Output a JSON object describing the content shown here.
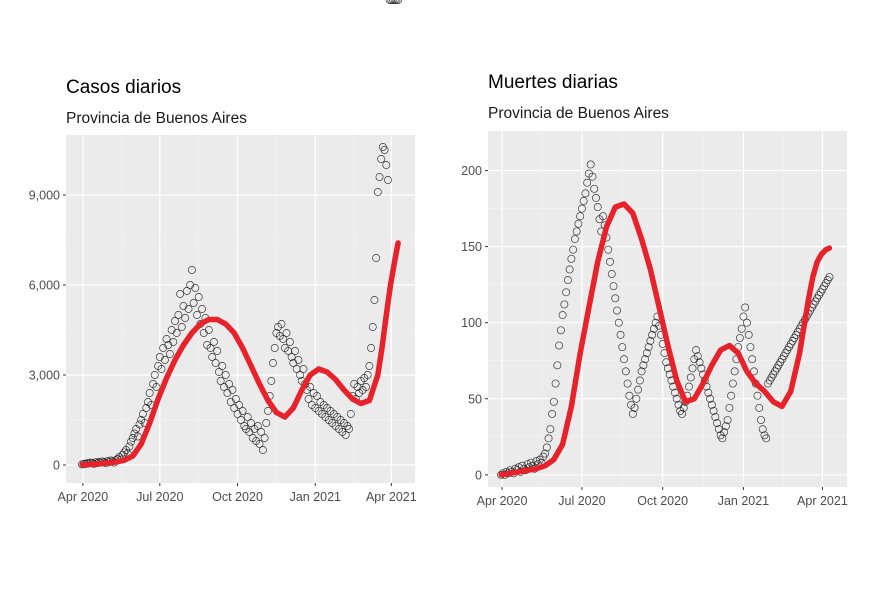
{
  "chart_data": [
    {
      "type": "scatter",
      "title": "Casos diarios",
      "subtitle": "Provincia de Buenos Aires",
      "xlabel": "",
      "ylabel": "",
      "x_ticks": [
        "Apr 2020",
        "Jul 2020",
        "Oct 2020",
        "Jan 2021",
        "Apr 2021"
      ],
      "y_ticks": [
        "0",
        "3,000",
        "6,000",
        "9,000"
      ],
      "y_tick_values": [
        0,
        3000,
        6000,
        9000
      ],
      "ylim": [
        -600,
        11000
      ],
      "xlim_days": [
        -19,
        394
      ],
      "x_tick_days": [
        1,
        92,
        184,
        276,
        366
      ],
      "grid": true,
      "smooth_color": "#e8222a",
      "points_color": "#1a1a1a",
      "panel_bg": "#ebebeb",
      "points_x": [
        0,
        2,
        4,
        6,
        8,
        10,
        12,
        14,
        16,
        18,
        20,
        22,
        24,
        26,
        28,
        30,
        32,
        34,
        36,
        38,
        40,
        42,
        44,
        46,
        48,
        50,
        52,
        54,
        56,
        58,
        60,
        62,
        64,
        66,
        68,
        70,
        72,
        74,
        76,
        78,
        80,
        82,
        84,
        86,
        88,
        90,
        92,
        94,
        96,
        98,
        100,
        102,
        104,
        106,
        108,
        110,
        112,
        114,
        116,
        118,
        120,
        122,
        124,
        126,
        128,
        130,
        132,
        134,
        136,
        138,
        140,
        142,
        144,
        146,
        148,
        150,
        152,
        154,
        156,
        158,
        160,
        162,
        164,
        166,
        168,
        170,
        172,
        174,
        176,
        178,
        180,
        182,
        184,
        186,
        188,
        190,
        192,
        194,
        196,
        198,
        200,
        202,
        204,
        206,
        208,
        210,
        212,
        214,
        216,
        218,
        220,
        222,
        224,
        226,
        228,
        230,
        232,
        234,
        236,
        238,
        240,
        242,
        244,
        246,
        248,
        250,
        252,
        254,
        256,
        258,
        260,
        262,
        264,
        266,
        268,
        270,
        272,
        274,
        276,
        278,
        280,
        282,
        284,
        286,
        288,
        290,
        292,
        294,
        296,
        298,
        300,
        302,
        304,
        306,
        308,
        310,
        312,
        314,
        316,
        318,
        320,
        322,
        324,
        326,
        328,
        330,
        332,
        334,
        336,
        338,
        340,
        342,
        344,
        346,
        348,
        350,
        352,
        354,
        356,
        358,
        360,
        362,
        364,
        366,
        368,
        370,
        372,
        374
      ],
      "points_y": [
        20,
        40,
        30,
        60,
        50,
        80,
        70,
        40,
        90,
        60,
        100,
        80,
        120,
        90,
        60,
        130,
        100,
        150,
        120,
        80,
        160,
        200,
        260,
        180,
        340,
        420,
        500,
        380,
        620,
        780,
        900,
        1050,
        1200,
        950,
        1350,
        1500,
        1700,
        1400,
        1900,
        2100,
        2400,
        2000,
        2700,
        3000,
        2600,
        3300,
        3600,
        3200,
        3900,
        3500,
        4200,
        4000,
        3700,
        4500,
        4100,
        4800,
        4400,
        5000,
        5700,
        4600,
        5300,
        4900,
        5800,
        5200,
        6000,
        6500,
        5400,
        5900,
        5000,
        5600,
        4700,
        5200,
        4400,
        4900,
        4000,
        4500,
        3900,
        3600,
        4100,
        3400,
        3800,
        3100,
        2800,
        3300,
        2600,
        3000,
        2400,
        2700,
        2100,
        2500,
        1900,
        2200,
        1700,
        2000,
        1500,
        1800,
        1300,
        1200,
        1600,
        1100,
        1400,
        900,
        1200,
        800,
        1300,
        700,
        1100,
        500,
        900,
        1400,
        1800,
        2300,
        2800,
        3400,
        3900,
        4400,
        4600,
        4300,
        4700,
        4200,
        3900,
        4400,
        3800,
        4100,
        3600,
        3400,
        3800,
        3200,
        3500,
        3000,
        2800,
        3200,
        2700,
        2500,
        2200,
        2600,
        2000,
        2400,
        1900,
        2300,
        1800,
        2100,
        1700,
        2000,
        1600,
        1900,
        1500,
        1800,
        1400,
        1700,
        1300,
        1600,
        1200,
        1500,
        1100,
        1400,
        1000,
        1300,
        1200,
        1700,
        2300,
        2700,
        2200,
        2600,
        2400,
        2800,
        2500,
        2900,
        2600,
        3000,
        3300,
        3900,
        4600,
        5500,
        6900,
        9100,
        9600,
        10200,
        10600,
        10500,
        10000,
        9500
      ],
      "smooth_x": [
        0,
        10,
        20,
        30,
        40,
        50,
        60,
        70,
        80,
        90,
        100,
        110,
        120,
        130,
        140,
        150,
        160,
        170,
        180,
        190,
        200,
        210,
        220,
        230,
        240,
        250,
        260,
        270,
        280,
        290,
        300,
        310,
        320,
        330,
        340,
        350,
        355,
        360,
        365,
        370,
        374
      ],
      "smooth_y": [
        10,
        20,
        40,
        70,
        100,
        160,
        300,
        700,
        1400,
        2200,
        2900,
        3500,
        4000,
        4400,
        4700,
        4850,
        4850,
        4700,
        4400,
        3900,
        3300,
        2700,
        2150,
        1750,
        1600,
        1900,
        2500,
        3000,
        3200,
        3100,
        2850,
        2500,
        2200,
        2050,
        2150,
        3000,
        3900,
        5000,
        6000,
        6800,
        7400
      ]
    },
    {
      "type": "scatter",
      "title": "Muertes diarias",
      "subtitle": "Provincia de Buenos Aires",
      "xlabel": "",
      "ylabel": "",
      "x_ticks": [
        "Apr 2020",
        "Jul 2020",
        "Oct 2020",
        "Jan 2021",
        "Apr 2021"
      ],
      "y_ticks": [
        "0",
        "50",
        "100",
        "150",
        "200"
      ],
      "y_tick_values": [
        0,
        50,
        100,
        150,
        200
      ],
      "ylim": [
        -8,
        226
      ],
      "xlim_days": [
        -15,
        394
      ],
      "x_tick_days": [
        1,
        92,
        184,
        276,
        366
      ],
      "grid": true,
      "smooth_color": "#e8222a",
      "points_color": "#1a1a1a",
      "panel_bg": "#ebebeb",
      "points_x": [
        0,
        2,
        4,
        6,
        8,
        10,
        12,
        14,
        16,
        18,
        20,
        22,
        24,
        26,
        28,
        30,
        32,
        34,
        36,
        38,
        40,
        42,
        44,
        46,
        48,
        50,
        52,
        54,
        56,
        58,
        60,
        62,
        64,
        66,
        68,
        70,
        72,
        74,
        76,
        78,
        80,
        82,
        84,
        86,
        88,
        90,
        92,
        94,
        96,
        98,
        100,
        102,
        104,
        106,
        108,
        110,
        112,
        114,
        116,
        118,
        120,
        122,
        124,
        126,
        128,
        130,
        132,
        134,
        136,
        138,
        140,
        142,
        144,
        146,
        148,
        150,
        152,
        154,
        156,
        158,
        160,
        162,
        164,
        166,
        168,
        170,
        172,
        174,
        176,
        178,
        180,
        182,
        184,
        186,
        188,
        190,
        192,
        194,
        196,
        198,
        200,
        202,
        204,
        206,
        208,
        210,
        212,
        214,
        216,
        218,
        220,
        222,
        224,
        226,
        228,
        230,
        232,
        234,
        236,
        238,
        240,
        242,
        244,
        246,
        248,
        250,
        252,
        254,
        256,
        258,
        260,
        262,
        264,
        266,
        268,
        270,
        272,
        274,
        276,
        278,
        280,
        282,
        284,
        286,
        288,
        290,
        292,
        294,
        296,
        298,
        300,
        302,
        304,
        306,
        308,
        310,
        312,
        314,
        316,
        318,
        320,
        322,
        324,
        326,
        328,
        330,
        332,
        334,
        336,
        338,
        340,
        342,
        344,
        346,
        348,
        350,
        352,
        354,
        356,
        358,
        360,
        362,
        364,
        366,
        368,
        370,
        372,
        374
      ],
      "points_y": [
        0,
        1,
        0,
        2,
        1,
        3,
        2,
        1,
        4,
        3,
        5,
        2,
        6,
        4,
        3,
        7,
        5,
        8,
        6,
        4,
        9,
        7,
        10,
        8,
        12,
        14,
        18,
        24,
        30,
        40,
        48,
        60,
        72,
        85,
        95,
        105,
        112,
        120,
        128,
        135,
        142,
        148,
        155,
        160,
        165,
        170,
        175,
        180,
        185,
        192,
        198,
        204,
        196,
        188,
        182,
        176,
        168,
        160,
        170,
        164,
        156,
        148,
        140,
        132,
        124,
        116,
        108,
        100,
        92,
        84,
        76,
        68,
        60,
        52,
        46,
        40,
        44,
        50,
        56,
        62,
        68,
        72,
        76,
        80,
        84,
        88,
        92,
        96,
        100,
        104,
        98,
        92,
        86,
        80,
        74,
        70,
        66,
        62,
        58,
        54,
        50,
        46,
        42,
        40,
        44,
        48,
        52,
        58,
        64,
        70,
        76,
        82,
        78,
        74,
        70,
        66,
        62,
        58,
        54,
        50,
        46,
        42,
        38,
        34,
        30,
        26,
        24,
        28,
        32,
        36,
        44,
        52,
        60,
        68,
        76,
        84,
        90,
        96,
        104,
        110,
        100,
        92,
        84,
        76,
        68,
        60,
        52,
        44,
        36,
        30,
        26,
        24,
        60,
        62,
        64,
        66,
        68,
        70,
        72,
        74,
        76,
        78,
        80,
        82,
        84,
        86,
        88,
        90,
        92,
        94,
        96,
        98,
        100,
        102,
        104,
        106,
        108,
        110,
        112,
        114,
        116,
        118,
        120,
        122,
        124,
        126,
        128,
        130
      ],
      "smooth_x": [
        0,
        10,
        20,
        30,
        40,
        50,
        60,
        70,
        80,
        90,
        100,
        110,
        120,
        130,
        140,
        150,
        160,
        170,
        180,
        190,
        200,
        210,
        220,
        230,
        240,
        250,
        260,
        270,
        280,
        290,
        300,
        310,
        320,
        330,
        340,
        350,
        355,
        360,
        365,
        370,
        374
      ],
      "smooth_y": [
        0,
        1,
        2,
        3,
        4,
        6,
        10,
        20,
        45,
        80,
        110,
        140,
        163,
        176,
        178,
        172,
        155,
        135,
        110,
        85,
        62,
        48,
        50,
        60,
        72,
        82,
        85,
        80,
        68,
        60,
        55,
        48,
        45,
        55,
        80,
        115,
        130,
        140,
        145,
        148,
        149
      ]
    }
  ]
}
